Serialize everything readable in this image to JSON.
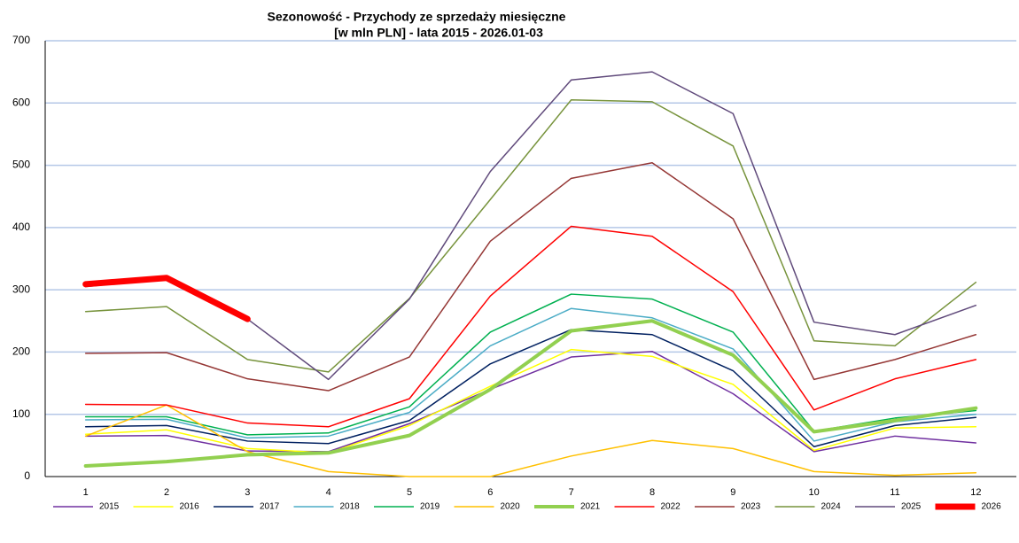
{
  "chart_data": {
    "type": "line",
    "title": "Sezonowość - Przychody ze sprzedaży miesięczne",
    "subtitle": "[w mln PLN] - lata 2015 - 2026.01-03",
    "categories": [
      "1",
      "2",
      "3",
      "4",
      "5",
      "6",
      "7",
      "8",
      "9",
      "10",
      "11",
      "12"
    ],
    "ylim": [
      0,
      700
    ],
    "yticks": [
      0,
      100,
      200,
      300,
      400,
      500,
      600,
      700
    ],
    "grid": true,
    "legend": "bottom",
    "series": [
      {
        "name": "2015",
        "color": "#7030a0",
        "values": [
          65,
          66,
          41,
          40,
          85,
          140,
          192,
          201,
          133,
          40,
          65,
          54
        ]
      },
      {
        "name": "2016",
        "color": "#ffff00",
        "values": [
          68,
          75,
          45,
          38,
          82,
          145,
          204,
          193,
          148,
          42,
          78,
          80
        ]
      },
      {
        "name": "2017",
        "color": "#002060",
        "values": [
          80,
          82,
          57,
          53,
          90,
          181,
          236,
          228,
          170,
          48,
          82,
          95
        ]
      },
      {
        "name": "2018",
        "color": "#4bacc6",
        "values": [
          91,
          92,
          62,
          65,
          103,
          210,
          270,
          255,
          205,
          57,
          88,
          100
        ]
      },
      {
        "name": "2019",
        "color": "#00b050",
        "values": [
          96,
          96,
          67,
          70,
          112,
          232,
          293,
          285,
          232,
          73,
          94,
          106
        ]
      },
      {
        "name": "2020",
        "color": "#ffc000",
        "values": [
          65,
          115,
          40,
          8,
          0,
          0,
          33,
          58,
          45,
          8,
          2,
          6
        ]
      },
      {
        "name": "2021",
        "color": "#92d050",
        "values": [
          17,
          24,
          35,
          38,
          66,
          140,
          234,
          250,
          195,
          72,
          90,
          110
        ]
      },
      {
        "name": "2022",
        "color": "#ff0000",
        "values": [
          116,
          115,
          86,
          80,
          125,
          290,
          402,
          386,
          297,
          107,
          157,
          188
        ]
      },
      {
        "name": "2023",
        "color": "#953735",
        "values": [
          198,
          199,
          157,
          138,
          192,
          378,
          479,
          504,
          414,
          156,
          188,
          228
        ]
      },
      {
        "name": "2024",
        "color": "#77933c",
        "values": [
          265,
          273,
          188,
          168,
          286,
          445,
          605,
          602,
          531,
          218,
          210,
          312
        ]
      },
      {
        "name": "2025",
        "color": "#604a7b",
        "values": [
          305,
          318,
          253,
          156,
          285,
          490,
          637,
          650,
          583,
          248,
          228,
          275
        ]
      },
      {
        "name": "2026",
        "color": "#ff0000",
        "values": [
          309,
          319,
          253,
          null,
          null,
          null,
          null,
          null,
          null,
          null,
          null,
          null
        ]
      }
    ]
  }
}
